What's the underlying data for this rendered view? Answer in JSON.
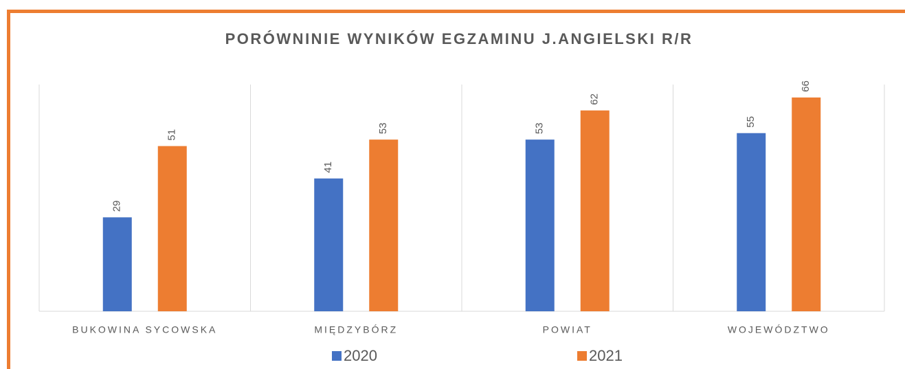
{
  "chart_data": {
    "type": "bar",
    "title": "PORÓWNINIE WYNIKÓW EGZAMINU J.ANGIELSKI R/R",
    "categories": [
      "BUKOWINA SYCOWSKA",
      "MIĘDZYBÓRZ",
      "POWIAT",
      "WOJEWÓDZTWO"
    ],
    "series": [
      {
        "name": "2020",
        "color": "#4472c4",
        "values": [
          29,
          41,
          53,
          55
        ]
      },
      {
        "name": "2021",
        "color": "#ed7d31",
        "values": [
          51,
          53,
          62,
          66
        ]
      }
    ],
    "ylim": [
      0,
      70
    ],
    "legend": "bottom"
  }
}
